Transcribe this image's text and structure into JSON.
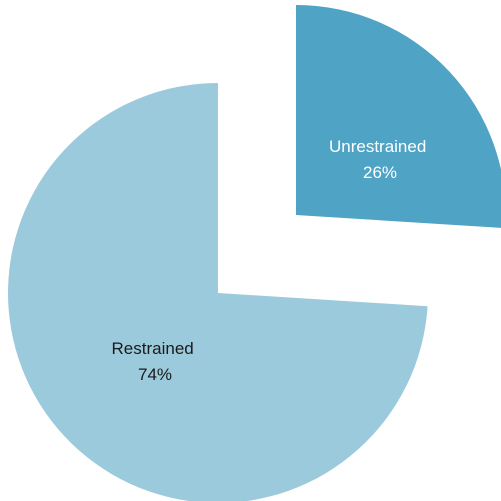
{
  "chart_data": {
    "type": "pie",
    "exploded": true,
    "slices": [
      {
        "category": "Unrestrained",
        "percent_label": "26%",
        "value": 26,
        "color": "#4fa3c4",
        "label_color": "#ffffff"
      },
      {
        "category": "Restrained",
        "percent_label": "74%",
        "value": 74,
        "color": "#9ccadd",
        "label_color": "#1a1a1a"
      }
    ],
    "title": "",
    "legend": "none"
  }
}
